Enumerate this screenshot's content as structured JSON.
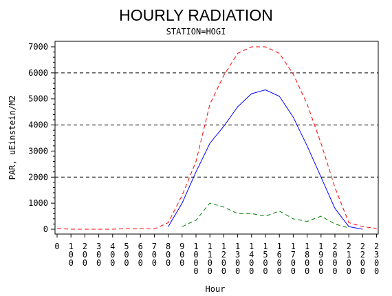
{
  "chart_data": {
    "type": "line",
    "title": "HOURLY RADIATION",
    "subtitle": "STATION=HOGI",
    "xlabel": "Hour",
    "ylabel": "PAR, uEinstein/M2",
    "x": [
      0,
      100,
      200,
      300,
      400,
      500,
      600,
      700,
      800,
      900,
      1000,
      1100,
      1200,
      1300,
      1400,
      1500,
      1600,
      1700,
      1800,
      1900,
      2000,
      2100,
      2200,
      2300
    ],
    "xticks": [
      "0",
      "100",
      "200",
      "300",
      "400",
      "500",
      "600",
      "700",
      "800",
      "900",
      "1000",
      "1100",
      "1200",
      "1300",
      "1400",
      "1500",
      "1600",
      "1700",
      "1800",
      "1900",
      "2000",
      "2100",
      "2200",
      "2300"
    ],
    "ylim": [
      0,
      7000
    ],
    "yticks": [
      0,
      1000,
      2000,
      3000,
      4000,
      5000,
      6000,
      7000
    ],
    "reference_lines": [
      2000,
      4000,
      6000
    ],
    "grid": false,
    "series": [
      {
        "color": "#ff0000",
        "dash": "dashed",
        "values": [
          30,
          0,
          0,
          0,
          0,
          20,
          20,
          10,
          250,
          1300,
          2600,
          4800,
          5900,
          6750,
          7000,
          7000,
          6750,
          5950,
          4800,
          3300,
          1600,
          250,
          100,
          30
        ]
      },
      {
        "color": "#0000ff",
        "dash": "solid",
        "values": [
          null,
          null,
          null,
          null,
          null,
          null,
          null,
          null,
          100,
          1000,
          2200,
          3300,
          3950,
          4700,
          5200,
          5350,
          5100,
          4300,
          3200,
          2000,
          800,
          100,
          0,
          null
        ]
      },
      {
        "color": "#008000",
        "dash": "dashed",
        "values": [
          null,
          null,
          null,
          null,
          null,
          null,
          null,
          null,
          null,
          100,
          350,
          1000,
          850,
          600,
          600,
          500,
          700,
          400,
          300,
          500,
          200,
          50,
          null,
          null
        ]
      }
    ]
  }
}
